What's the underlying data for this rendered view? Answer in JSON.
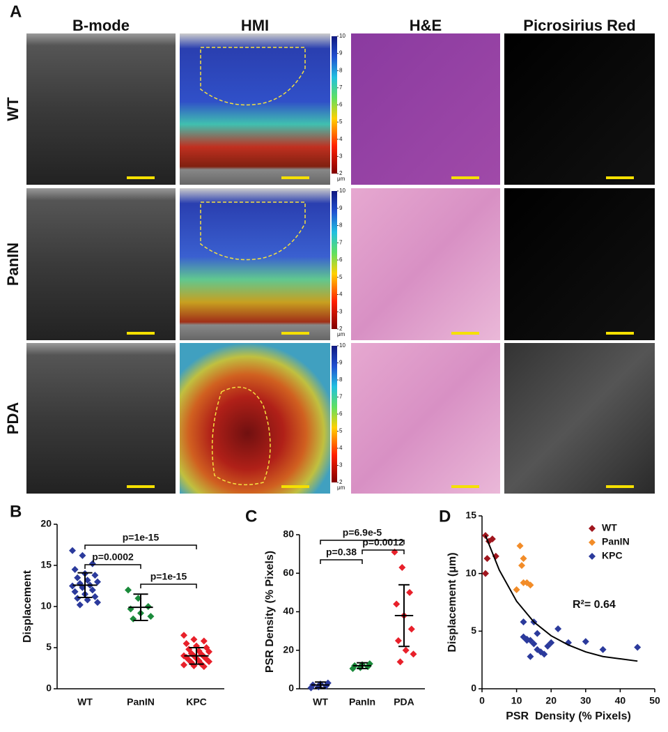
{
  "panel_a": {
    "label": "A",
    "columns": [
      "B-mode",
      "HMI",
      "H&E",
      "Picrosirius Red"
    ],
    "rows": [
      "WT",
      "PanIN",
      "PDA"
    ],
    "colorbar": {
      "lim": [
        2,
        10
      ],
      "ticks": [
        2,
        3,
        4,
        5,
        6,
        7,
        8,
        9,
        10
      ],
      "unit": "μm"
    }
  },
  "chart_data": [
    {
      "type": "strip",
      "panel": "B",
      "ylabel": "Displacement",
      "categories": [
        "WT",
        "PanIN",
        "KPC"
      ],
      "ylim": [
        0,
        20
      ],
      "yticks": [
        0,
        5,
        10,
        15,
        20
      ],
      "series": [
        {
          "name": "WT",
          "color": "#2b3a9c",
          "values": [
            16.8,
            16.2,
            15.2,
            14.5,
            14.0,
            13.8,
            13.5,
            13.2,
            13.0,
            12.8,
            12.6,
            12.5,
            12.3,
            12.0,
            11.8,
            11.5,
            11.2,
            11.0,
            10.8,
            10.5,
            10.2
          ],
          "mean": 12.6,
          "sd": 1.5
        },
        {
          "name": "PanIN",
          "color": "#1a8a3a",
          "values": [
            12.0,
            11.0,
            10.0,
            9.7,
            9.2,
            8.8,
            8.5
          ],
          "mean": 9.9,
          "sd": 1.6
        },
        {
          "name": "KPC",
          "color": "#e8202a",
          "values": [
            6.5,
            6.0,
            5.8,
            5.5,
            5.2,
            5.0,
            4.8,
            4.6,
            4.5,
            4.3,
            4.2,
            4.0,
            4.0,
            3.9,
            3.8,
            3.7,
            3.6,
            3.5,
            3.4,
            3.3,
            3.2,
            3.0,
            2.9,
            2.8,
            2.7
          ],
          "mean": 4.0,
          "sd": 1.0
        }
      ],
      "comparisons": [
        {
          "groups": [
            "WT",
            "KPC"
          ],
          "label": "p=1e-15"
        },
        {
          "groups": [
            "WT",
            "PanIN"
          ],
          "label": "p=0.0002"
        },
        {
          "groups": [
            "PanIN",
            "KPC"
          ],
          "label": "p=1e-15"
        }
      ]
    },
    {
      "type": "strip",
      "panel": "C",
      "ylabel": "PSR Density (% Pixels)",
      "categories": [
        "WT",
        "PanIn",
        "PDA"
      ],
      "ylim": [
        0,
        80
      ],
      "yticks": [
        0,
        20,
        40,
        60,
        80
      ],
      "series": [
        {
          "name": "WT",
          "color": "#2b3a9c",
          "values": [
            0.5,
            1.0,
            1.5,
            2.0,
            2.5,
            3.0
          ],
          "mean": 2,
          "sd": 1.5
        },
        {
          "name": "PanIn",
          "color": "#1a8a3a",
          "values": [
            10.5,
            11.0,
            11.5,
            12.0,
            12.5,
            13.0
          ],
          "mean": 12,
          "sd": 1.5
        },
        {
          "name": "PDA",
          "color": "#e8202a",
          "values": [
            71,
            63,
            50,
            44,
            38,
            31,
            25,
            20,
            18,
            14
          ],
          "mean": 38,
          "sd": 16
        }
      ],
      "comparisons": [
        {
          "groups": [
            "WT",
            "PDA"
          ],
          "label": "p=6.9e-5"
        },
        {
          "groups": [
            "PanIn",
            "PDA"
          ],
          "label": "p=0.0012"
        },
        {
          "groups": [
            "WT",
            "PanIn"
          ],
          "label": "p=0.38"
        }
      ]
    },
    {
      "type": "scatter",
      "panel": "D",
      "xlabel": "PSR  Density (% Pixels)",
      "ylabel": "Displacement (μm)",
      "xlim": [
        0,
        50
      ],
      "xticks": [
        0,
        10,
        20,
        30,
        40,
        50
      ],
      "ylim": [
        0,
        15
      ],
      "yticks": [
        0,
        5,
        10,
        15
      ],
      "legend": "top-right",
      "annotation": "R²= 0.64",
      "series": [
        {
          "name": "WT",
          "color": "#a0161e",
          "x": [
            1,
            2,
            3,
            1.5,
            4,
            1
          ],
          "values": [
            13.3,
            12.8,
            13.0,
            11.3,
            11.5,
            10.0
          ]
        },
        {
          "name": "PanIN",
          "color": "#f28c28",
          "x": [
            11,
            12,
            10,
            13,
            12,
            14,
            11.5
          ],
          "values": [
            12.4,
            11.3,
            8.6,
            9.2,
            9.2,
            9.0,
            10.7
          ]
        },
        {
          "name": "KPC",
          "color": "#2b3a9c",
          "x": [
            12,
            13,
            14,
            15,
            16,
            13,
            12,
            15,
            17,
            18,
            20,
            22,
            25,
            30,
            35,
            45,
            14,
            16,
            19
          ],
          "values": [
            5.8,
            4.2,
            4.2,
            5.8,
            4.8,
            4.3,
            4.5,
            3.9,
            3.2,
            3.0,
            4.0,
            5.2,
            4.0,
            4.1,
            3.4,
            3.6,
            2.8,
            3.4,
            3.7
          ]
        }
      ],
      "fit": {
        "x": [
          1,
          5,
          10,
          15,
          20,
          25,
          30,
          35,
          40,
          45
        ],
        "values": [
          13.3,
          10.3,
          7.6,
          5.8,
          4.6,
          3.8,
          3.2,
          2.8,
          2.6,
          2.4
        ]
      }
    }
  ]
}
